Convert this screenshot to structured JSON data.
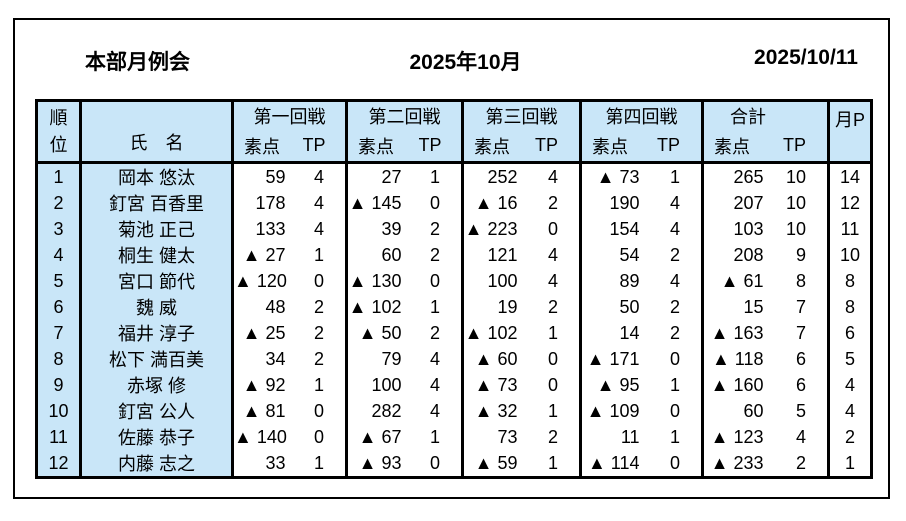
{
  "page": {
    "title_left": "本部月例会",
    "title_center": "2025年10月",
    "title_right": "2025/10/11"
  },
  "colors": {
    "header_bg": "#c9e6f8",
    "border": "#000000"
  },
  "table": {
    "headers": {
      "rank_line1": "順",
      "rank_line2": "位",
      "name": "氏　名",
      "rounds": [
        "第一回戦",
        "第二回戦",
        "第三回戦",
        "第四回戦"
      ],
      "total": "合計",
      "score": "素点",
      "tp": "TP",
      "month_p": "月P"
    },
    "rows": [
      [
        "1",
        "岡本 悠汰",
        "59",
        "4",
        "27",
        "1",
        "252",
        "4",
        "▲ 73",
        "1",
        "265",
        "10",
        "14"
      ],
      [
        "2",
        "釘宮 百香里",
        "178",
        "4",
        "▲ 145",
        "0",
        "▲ 16",
        "2",
        "190",
        "4",
        "207",
        "10",
        "12"
      ],
      [
        "3",
        "菊池 正己",
        "133",
        "4",
        "39",
        "2",
        "▲ 223",
        "0",
        "154",
        "4",
        "103",
        "10",
        "11"
      ],
      [
        "4",
        "桐生 健太",
        "▲ 27",
        "1",
        "60",
        "2",
        "121",
        "4",
        "54",
        "2",
        "208",
        "9",
        "10"
      ],
      [
        "5",
        "宮口 節代",
        "▲ 120",
        "0",
        "▲ 130",
        "0",
        "100",
        "4",
        "89",
        "4",
        "▲ 61",
        "8",
        "8"
      ],
      [
        "6",
        "魏 威",
        "48",
        "2",
        "▲ 102",
        "1",
        "19",
        "2",
        "50",
        "2",
        "15",
        "7",
        "8"
      ],
      [
        "7",
        "福井 淳子",
        "▲ 25",
        "2",
        "▲ 50",
        "2",
        "▲ 102",
        "1",
        "14",
        "2",
        "▲ 163",
        "7",
        "6"
      ],
      [
        "8",
        "松下 満百美",
        "34",
        "2",
        "79",
        "4",
        "▲ 60",
        "0",
        "▲ 171",
        "0",
        "▲ 118",
        "6",
        "5"
      ],
      [
        "9",
        "赤塚 修",
        "▲ 92",
        "1",
        "100",
        "4",
        "▲ 73",
        "0",
        "▲ 95",
        "1",
        "▲ 160",
        "6",
        "4"
      ],
      [
        "10",
        "釘宮 公人",
        "▲ 81",
        "0",
        "282",
        "4",
        "▲ 32",
        "1",
        "▲ 109",
        "0",
        "60",
        "5",
        "4"
      ],
      [
        "11",
        "佐藤 恭子",
        "▲ 140",
        "0",
        "▲ 67",
        "1",
        "73",
        "2",
        "11",
        "1",
        "▲ 123",
        "4",
        "2"
      ],
      [
        "12",
        "内藤 志之",
        "33",
        "1",
        "▲ 93",
        "0",
        "▲ 59",
        "1",
        "▲ 114",
        "0",
        "▲ 233",
        "2",
        "1"
      ]
    ]
  }
}
